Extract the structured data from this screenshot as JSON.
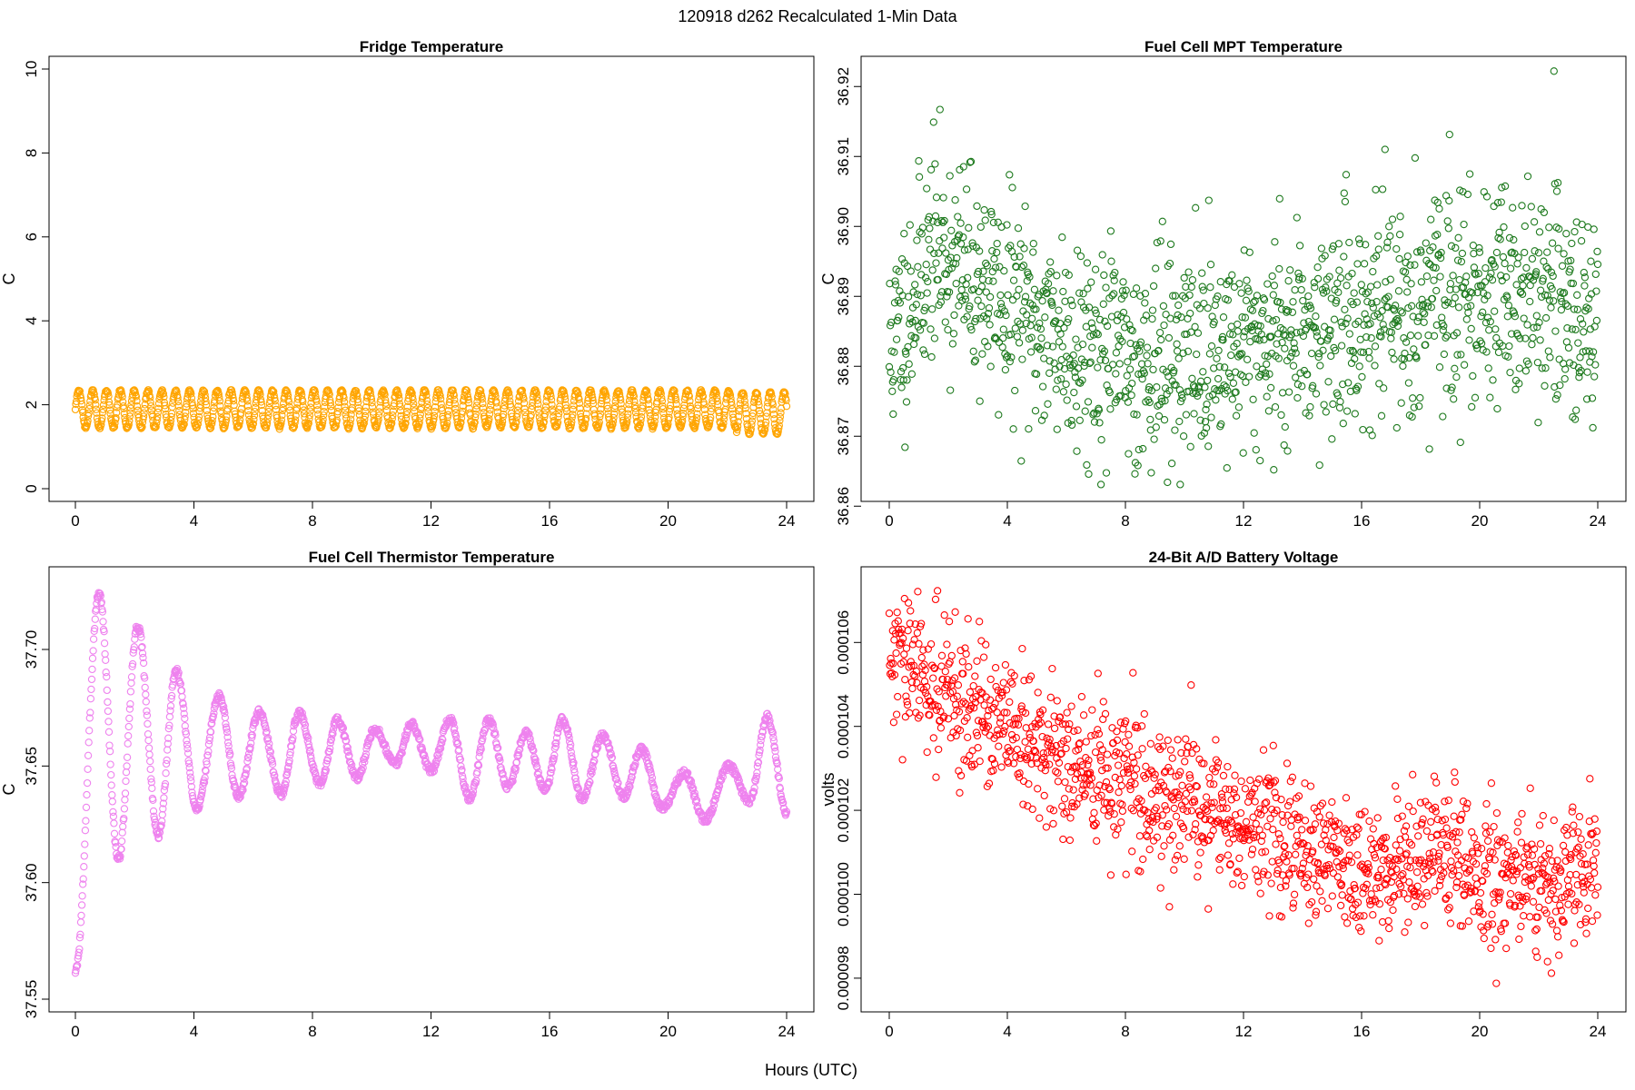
{
  "figure": {
    "title": "120918   d262   Recalculated 1-Min Data",
    "xlabel": "Hours (UTC)"
  },
  "chart_data": [
    {
      "type": "scatter",
      "title": "Fridge Temperature",
      "xlabel": "Hours (UTC)",
      "ylabel": "C",
      "color": "#ffa500",
      "xlim": [
        0,
        24
      ],
      "ylim": [
        0,
        10
      ],
      "xticks": [
        "0",
        "4",
        "8",
        "12",
        "16",
        "20",
        "24"
      ],
      "yticks": [
        "0",
        "2",
        "4",
        "6",
        "8",
        "10"
      ],
      "generator": {
        "kind": "band",
        "n": 1440,
        "low": 1.45,
        "high": 2.35,
        "period_hours": 0.5,
        "phase_drift": 0.9,
        "tail_start": 22.3,
        "tail_low": 1.3,
        "tail_high": 2.3
      },
      "summary": {
        "min": 1.3,
        "max": 2.35,
        "typical_band": [
          1.45,
          2.35
        ]
      }
    },
    {
      "type": "scatter",
      "title": "Fuel Cell MPT Temperature",
      "xlabel": "Hours (UTC)",
      "ylabel": "C",
      "color": "#1e7a1e",
      "xlim": [
        0,
        24
      ],
      "ylim": [
        36.8625,
        36.9225
      ],
      "xticks": [
        "0",
        "4",
        "8",
        "12",
        "16",
        "20",
        "24"
      ],
      "yticks": [
        "36.86",
        "36.87",
        "36.88",
        "36.89",
        "36.90",
        "36.91",
        "36.92"
      ],
      "generator": {
        "kind": "noise",
        "n": 1440,
        "seed": 11,
        "trend": [
          [
            0,
            36.882
          ],
          [
            1.5,
            36.897
          ],
          [
            3,
            36.892
          ],
          [
            5,
            36.886
          ],
          [
            8,
            36.881
          ],
          [
            11,
            36.882
          ],
          [
            14,
            36.885
          ],
          [
            17,
            36.888
          ],
          [
            20,
            36.891
          ],
          [
            22,
            36.89
          ],
          [
            24,
            36.886
          ]
        ],
        "sd": 0.0075
      },
      "summary": {
        "min": 36.865,
        "max": 36.922,
        "trend_start": 36.882,
        "trend_peak_1h": 36.897,
        "trend_low_9h": 36.881,
        "trend_end": 36.886
      }
    },
    {
      "type": "scatter",
      "title": "Fuel Cell Thermistor Temperature",
      "xlabel": "Hours (UTC)",
      "ylabel": "C",
      "color": "#ee82ee",
      "xlim": [
        0,
        24
      ],
      "ylim": [
        37.55,
        37.73
      ],
      "xticks": [
        "0",
        "4",
        "8",
        "12",
        "16",
        "20",
        "24"
      ],
      "yticks": [
        "37.55",
        "37.60",
        "37.65",
        "37.70"
      ],
      "generator": {
        "kind": "oscillation",
        "n": 1440,
        "peaks": [
          [
            0.0,
            37.562
          ],
          [
            0.8,
            37.724
          ],
          [
            1.45,
            37.61
          ],
          [
            2.1,
            37.71
          ],
          [
            2.8,
            37.62
          ],
          [
            3.4,
            37.691
          ],
          [
            4.1,
            37.632
          ],
          [
            4.85,
            37.68
          ],
          [
            5.5,
            37.637
          ],
          [
            6.2,
            37.673
          ],
          [
            6.95,
            37.638
          ],
          [
            7.55,
            37.673
          ],
          [
            8.25,
            37.642
          ],
          [
            8.85,
            37.67
          ],
          [
            9.5,
            37.645
          ],
          [
            10.1,
            37.666
          ],
          [
            10.8,
            37.651
          ],
          [
            11.35,
            37.668
          ],
          [
            12.0,
            37.648
          ],
          [
            12.65,
            37.67
          ],
          [
            13.3,
            37.636
          ],
          [
            13.95,
            37.67
          ],
          [
            14.6,
            37.641
          ],
          [
            15.2,
            37.664
          ],
          [
            15.85,
            37.64
          ],
          [
            16.45,
            37.67
          ],
          [
            17.1,
            37.636
          ],
          [
            17.8,
            37.663
          ],
          [
            18.5,
            37.637
          ],
          [
            19.1,
            37.657
          ],
          [
            19.8,
            37.632
          ],
          [
            20.55,
            37.647
          ],
          [
            21.25,
            37.627
          ],
          [
            22.05,
            37.65
          ],
          [
            22.75,
            37.635
          ],
          [
            23.35,
            37.671
          ],
          [
            24.0,
            37.63
          ]
        ],
        "jitter": 0.0015
      },
      "summary": {
        "min": 37.557,
        "max": 37.724,
        "first_peak": 37.724
      }
    },
    {
      "type": "scatter",
      "title": "24-Bit A/D Battery Voltage",
      "xlabel": "Hours (UTC)",
      "ylabel": "volts",
      "color": "#ff0000",
      "xlim": [
        0,
        24
      ],
      "ylim": [
        9.75e-05,
        0.0001075
      ],
      "xticks": [
        "0",
        "4",
        "8",
        "12",
        "16",
        "20",
        "24"
      ],
      "yticks": [
        "0.000098",
        "0.000100",
        "0.000102",
        "0.000104",
        "0.000106"
      ],
      "generator": {
        "kind": "noise",
        "n": 1440,
        "seed": 29,
        "trend": [
          [
            0,
            0.0001055
          ],
          [
            1,
            0.0001053
          ],
          [
            3,
            0.0001043
          ],
          [
            5,
            0.0001034
          ],
          [
            8,
            0.0001026
          ],
          [
            11,
            0.0001019
          ],
          [
            14,
            0.0001012
          ],
          [
            16,
            0.0001006
          ],
          [
            19,
            0.0001009
          ],
          [
            21,
            0.0001003
          ],
          [
            24,
            0.0001006
          ]
        ],
        "sd": 8.5e-07
      },
      "summary": {
        "min": 9.78e-05,
        "max": 0.0001075,
        "trend_start": 0.0001055,
        "trend_end": 0.0001006
      }
    }
  ]
}
